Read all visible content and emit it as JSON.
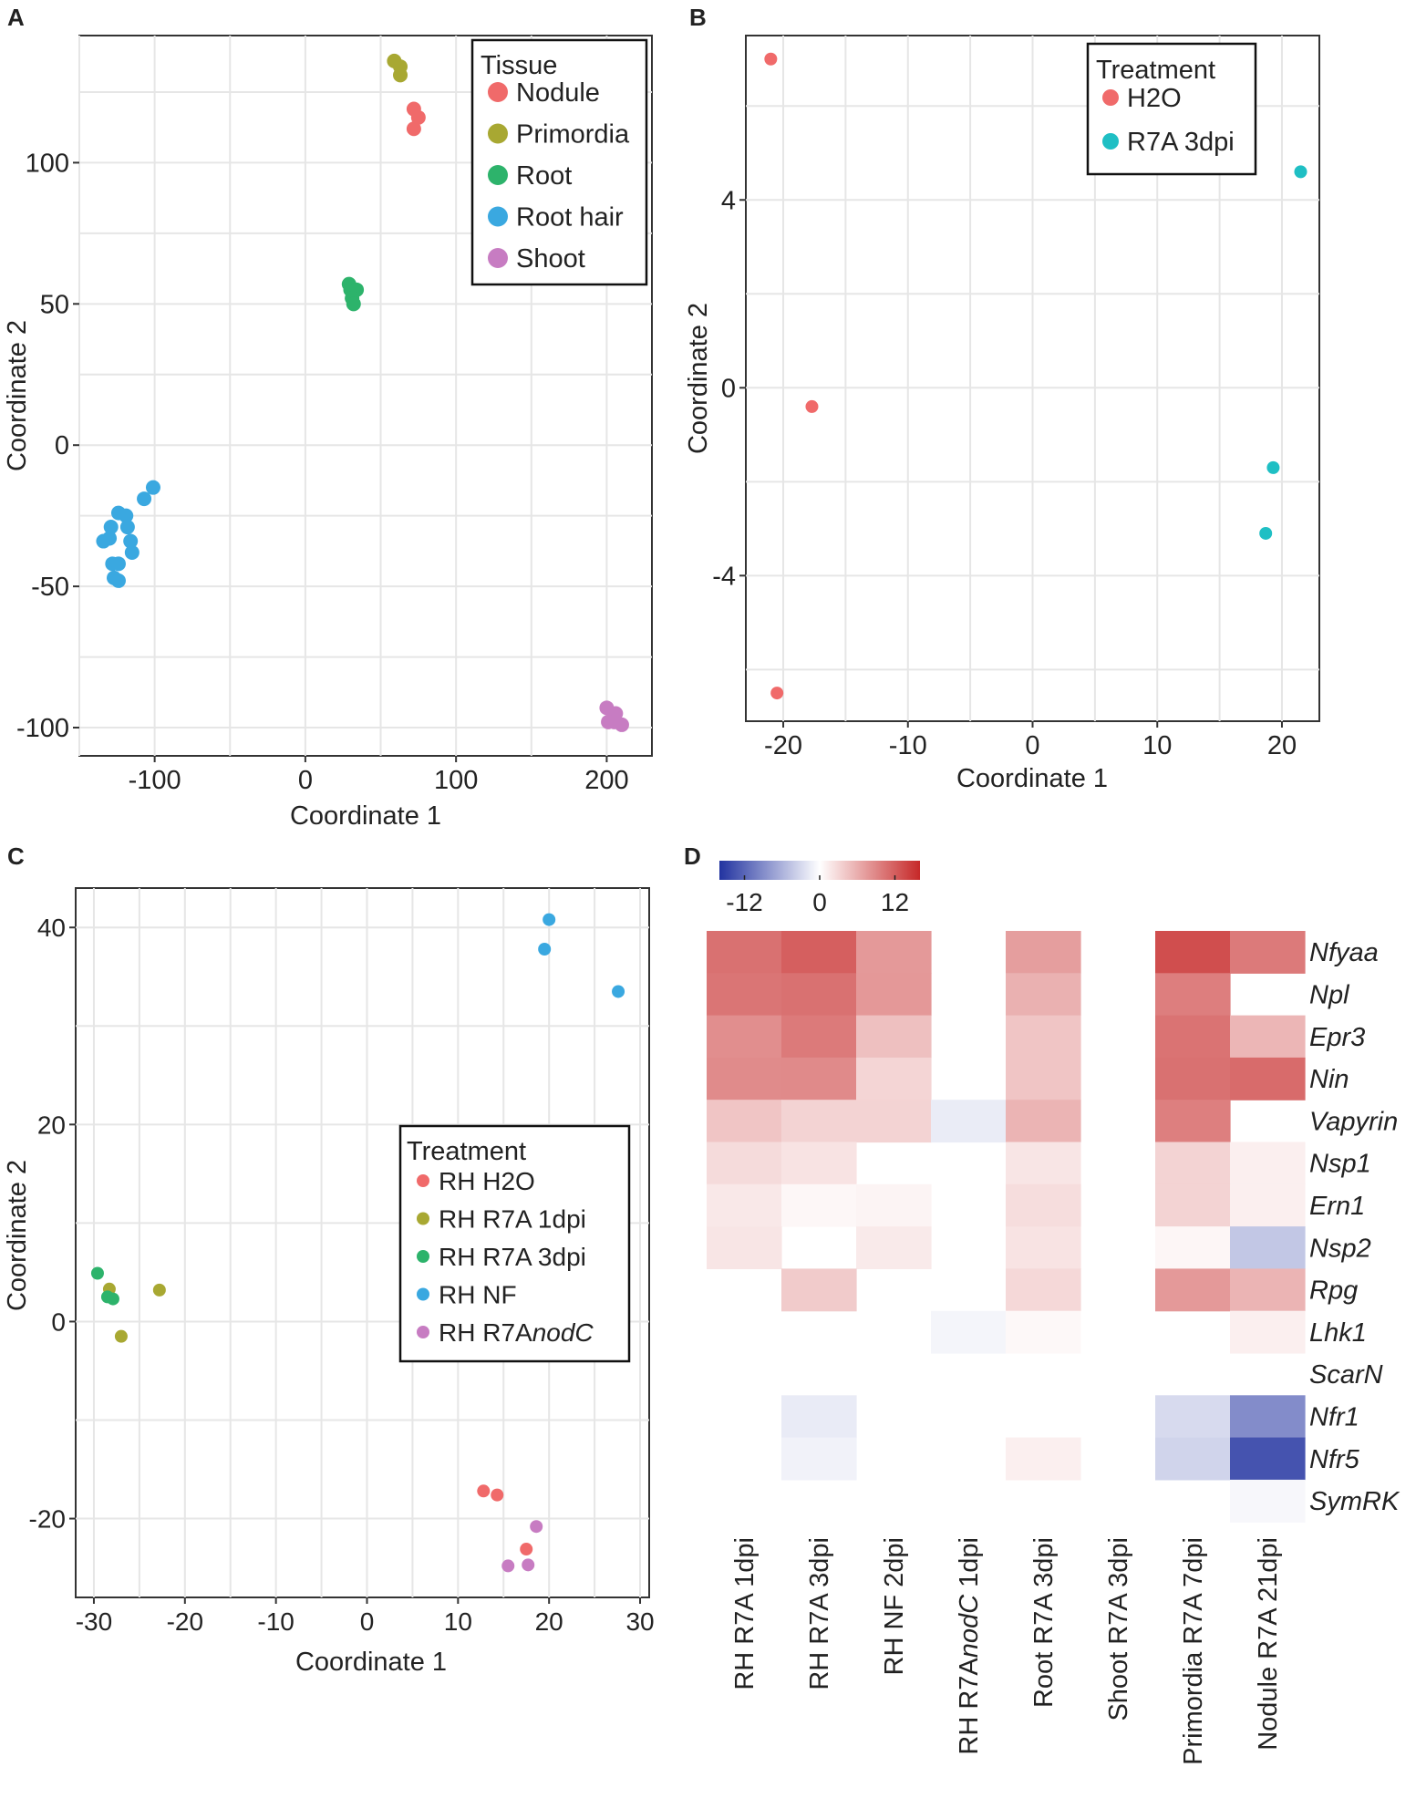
{
  "colors": {
    "red": "#F06A6A",
    "olive": "#A8A832",
    "green": "#2DB36B",
    "blue": "#3AA8E0",
    "purple": "#C77CC2",
    "cyan": "#1FBFC4",
    "grid": "#E6E6E6",
    "axis": "#333333",
    "hm_low": "#2233A0",
    "hm_mid": "#FFFFFF",
    "hm_high": "#C62828"
  },
  "chart_data": [
    {
      "id": "A",
      "panel_label": "A",
      "type": "scatter",
      "xlabel": "Coordinate 1",
      "ylabel": "Coordinate 2",
      "xlim": [
        -150,
        230
      ],
      "ylim": [
        -110,
        145
      ],
      "xticks": [
        -100,
        0,
        100,
        200
      ],
      "yticks": [
        -100,
        -50,
        0,
        50,
        100
      ],
      "xtick_labels": [
        "-100",
        "0",
        "100",
        "200"
      ],
      "ytick_labels": [
        "-100",
        "-50",
        "0",
        "50",
        "100"
      ],
      "legend_title": "Tissue",
      "series": [
        {
          "name": "Nodule",
          "color": "#F06A6A",
          "points": [
            [
              72,
              119
            ],
            [
              75,
              116
            ],
            [
              72,
              112
            ]
          ]
        },
        {
          "name": "Primordia",
          "color": "#A8A832",
          "points": [
            [
              59,
              136
            ],
            [
              63,
              134
            ],
            [
              63,
              131
            ]
          ]
        },
        {
          "name": "Root",
          "color": "#2DB36B",
          "points": [
            [
              29,
              57
            ],
            [
              30,
              55
            ],
            [
              34,
              55
            ],
            [
              31,
              52
            ],
            [
              32,
              50
            ]
          ]
        },
        {
          "name": "Root hair",
          "color": "#3AA8E0",
          "points": [
            [
              -101,
              -15
            ],
            [
              -107,
              -19
            ],
            [
              -124,
              -24
            ],
            [
              -119,
              -25
            ],
            [
              -118,
              -29
            ],
            [
              -129,
              -29
            ],
            [
              -130,
              -33
            ],
            [
              -134,
              -34
            ],
            [
              -116,
              -34
            ],
            [
              -115,
              -38
            ],
            [
              -128,
              -42
            ],
            [
              -124,
              -42
            ],
            [
              -127,
              -47
            ],
            [
              -124,
              -48
            ]
          ]
        },
        {
          "name": "Shoot",
          "color": "#C77CC2",
          "points": [
            [
              200,
              -93
            ],
            [
              206,
              -95
            ],
            [
              201,
              -98
            ],
            [
              205,
              -98
            ],
            [
              210,
              -99
            ]
          ]
        }
      ]
    },
    {
      "id": "B",
      "panel_label": "B",
      "type": "scatter",
      "xlabel": "Coordinate 1",
      "ylabel": "Coordinate 2",
      "xlim": [
        -23,
        23
      ],
      "ylim": [
        -7.1,
        7.5
      ],
      "xticks": [
        -20,
        -10,
        0,
        10,
        20
      ],
      "yticks": [
        -4,
        0,
        4
      ],
      "xtick_labels": [
        "-20",
        "-10",
        "0",
        "10",
        "20"
      ],
      "ytick_labels": [
        "-4",
        "0",
        "4"
      ],
      "legend_title": "Treatment",
      "series": [
        {
          "name": "H2O",
          "color": "#F06A6A",
          "points": [
            [
              -21,
              7
            ],
            [
              -17.7,
              -0.4
            ],
            [
              -20.5,
              -6.5
            ]
          ]
        },
        {
          "name": "R7A 3dpi",
          "color": "#1FBFC4",
          "points": [
            [
              21.5,
              4.6
            ],
            [
              19.3,
              -1.7
            ],
            [
              18.7,
              -3.1
            ]
          ]
        }
      ]
    },
    {
      "id": "C",
      "panel_label": "C",
      "type": "scatter",
      "xlabel": "Coordinate 1",
      "ylabel": "Coordinate 2",
      "xlim": [
        -32,
        31
      ],
      "ylim": [
        -28,
        44
      ],
      "xticks": [
        -30,
        -20,
        -10,
        0,
        10,
        20,
        30
      ],
      "yticks": [
        -20,
        0,
        20,
        40
      ],
      "xtick_labels": [
        "-30",
        "-20",
        "-10",
        "0",
        "10",
        "20",
        "30"
      ],
      "ytick_labels": [
        "-20",
        "0",
        "20",
        "40"
      ],
      "legend_title": "Treatment",
      "series": [
        {
          "name": "RH H2O",
          "color": "#F06A6A",
          "points": [
            [
              12.8,
              -17.2
            ],
            [
              14.3,
              -17.6
            ],
            [
              17.5,
              -23.1
            ]
          ]
        },
        {
          "name": "RH R7A 1dpi",
          "color": "#A8A832",
          "points": [
            [
              -28.3,
              3.3
            ],
            [
              -22.8,
              3.2
            ],
            [
              -27,
              -1.5
            ]
          ]
        },
        {
          "name": "RH R7A 3dpi",
          "color": "#2DB36B",
          "points": [
            [
              -29.6,
              4.9
            ],
            [
              -28.5,
              2.5
            ],
            [
              -27.9,
              2.3
            ]
          ]
        },
        {
          "name": "RH NF",
          "color": "#3AA8E0",
          "points": [
            [
              20,
              40.8
            ],
            [
              19.5,
              37.8
            ],
            [
              27.6,
              33.5
            ]
          ]
        },
        {
          "name": "RH R7A",
          "name_italic": "nodC",
          "color": "#C77CC2",
          "points": [
            [
              18.6,
              -20.8
            ],
            [
              15.5,
              -24.8
            ],
            [
              17.7,
              -24.7
            ]
          ]
        }
      ]
    },
    {
      "id": "D",
      "panel_label": "D",
      "type": "heatmap",
      "colorbar": {
        "min": -16,
        "max": 16,
        "ticks": [
          -12,
          0,
          12
        ],
        "tick_labels": [
          "-12",
          "0",
          "12"
        ]
      },
      "rows": [
        "Nfyaa",
        "Npl",
        "Epr3",
        "Nin",
        "Vapyrin",
        "Nsp1",
        "Ern1",
        "Nsp2",
        "Rpg",
        "Lhk1",
        "ScarN",
        "Nfr1",
        "Nfr5",
        "SymRK"
      ],
      "columns": [
        {
          "label": "RH R7A 1dpi"
        },
        {
          "label": "RH R7A 3dpi"
        },
        {
          "label": "RH NF 2dpi"
        },
        {
          "label": "RH R7A",
          "label_italic": "nodC",
          "label_end": " 1dpi"
        },
        {
          "label": "Root R7A 3dpi"
        },
        {
          "label": "Shoot R7A 3dpi"
        },
        {
          "label": "Primordia R7A 7dpi"
        },
        {
          "label": "Nodule R7A 21dpi"
        }
      ],
      "values": [
        [
          10.6,
          11.9,
          7.6,
          null,
          7.2,
          null,
          13.2,
          9.9
        ],
        [
          10.3,
          10.6,
          7.7,
          null,
          5.8,
          null,
          9.6,
          null
        ],
        [
          8.4,
          9.9,
          4.7,
          null,
          4.3,
          null,
          10.4,
          5.4
        ],
        [
          8.6,
          8.7,
          3.1,
          null,
          4.3,
          null,
          10.6,
          11.0
        ],
        [
          4.3,
          3.3,
          3.3,
          -1.5,
          5.6,
          null,
          9.5,
          null
        ],
        [
          2.7,
          2.1,
          null,
          null,
          1.9,
          null,
          3.3,
          1.2
        ],
        [
          1.7,
          0.6,
          0.8,
          null,
          2.5,
          null,
          3.3,
          1.2
        ],
        [
          1.9,
          null,
          1.6,
          null,
          2.1,
          null,
          0.7,
          -4.4
        ],
        [
          null,
          3.9,
          null,
          null,
          2.9,
          null,
          7.6,
          5.6
        ],
        [
          null,
          null,
          null,
          -0.8,
          0.5,
          null,
          null,
          1.2
        ],
        [
          null,
          null,
          null,
          null,
          null,
          null,
          null,
          null
        ],
        [
          null,
          -1.6,
          null,
          null,
          null,
          null,
          -2.9,
          -9.0
        ],
        [
          null,
          -1.0,
          null,
          null,
          1.2,
          null,
          -3.4,
          -13.5
        ],
        [
          null,
          null,
          null,
          null,
          null,
          null,
          null,
          -0.6
        ]
      ]
    }
  ]
}
